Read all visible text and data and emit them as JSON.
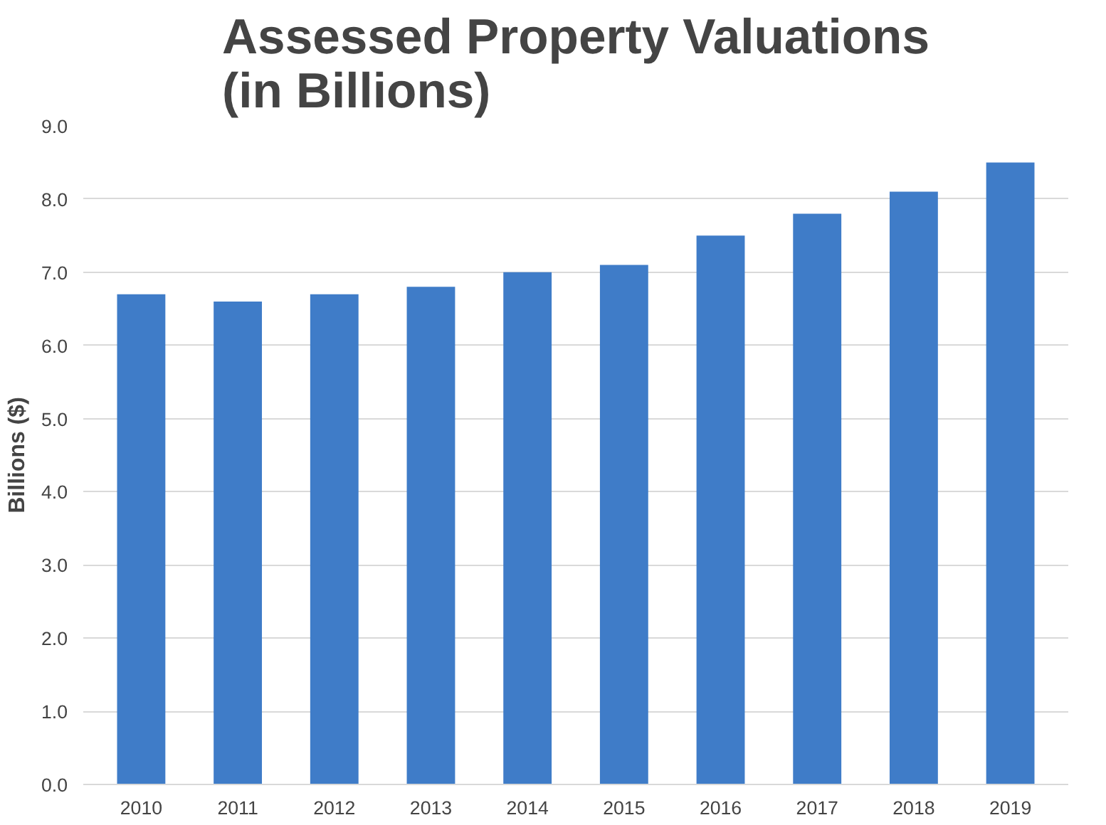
{
  "chart_data": {
    "type": "bar",
    "title": "Assessed Property Valuations\n(in Billions)",
    "ylabel": "Billions ($)",
    "categories": [
      "2010",
      "2011",
      "2012",
      "2013",
      "2014",
      "2015",
      "2016",
      "2017",
      "2018",
      "2019"
    ],
    "values": [
      6.7,
      6.6,
      6.7,
      6.8,
      7.0,
      7.1,
      7.5,
      7.8,
      8.1,
      8.5
    ],
    "color": "#3f7cc8",
    "ylim": [
      0,
      9
    ],
    "yticks": [
      {
        "value": 0,
        "label": "0.0"
      },
      {
        "value": 1,
        "label": "1.0"
      },
      {
        "value": 2,
        "label": "2.0"
      },
      {
        "value": 3,
        "label": "3.0"
      },
      {
        "value": 4,
        "label": "4.0"
      },
      {
        "value": 5,
        "label": "5.0"
      },
      {
        "value": 6,
        "label": "6.0"
      },
      {
        "value": 7,
        "label": "7.0"
      },
      {
        "value": 8,
        "label": "8.0"
      },
      {
        "value": 9,
        "label": "9.0"
      }
    ],
    "grid": "y"
  }
}
